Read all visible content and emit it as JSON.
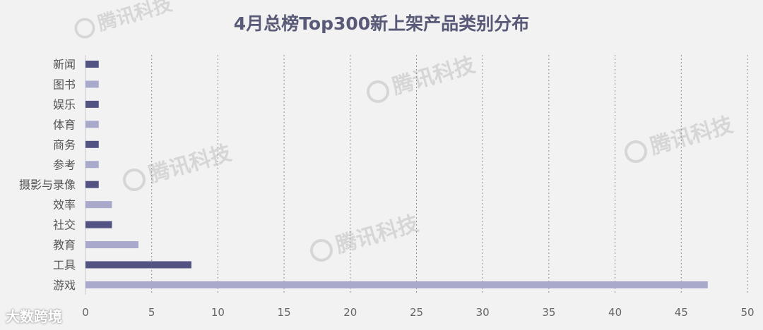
{
  "chart_data": {
    "type": "bar",
    "orientation": "horizontal",
    "title": "4月总榜Top300新上架产品类别分布",
    "categories": [
      "新闻",
      "图书",
      "娱乐",
      "体育",
      "商务",
      "参考",
      "摄影与录像",
      "效率",
      "社交",
      "教育",
      "工具",
      "游戏"
    ],
    "values": [
      1,
      1,
      1,
      1,
      1,
      1,
      1,
      2,
      2,
      4,
      8,
      47
    ],
    "xlim": [
      0,
      50
    ],
    "xticks": [
      0,
      5,
      10,
      15,
      20,
      25,
      30,
      35,
      40,
      45,
      50
    ],
    "grid": true,
    "colors": {
      "dark": "#535383",
      "light": "#a9a9cc"
    }
  },
  "watermark": {
    "text": "腾讯科技"
  },
  "footer": {
    "brand": "大数跨境"
  }
}
